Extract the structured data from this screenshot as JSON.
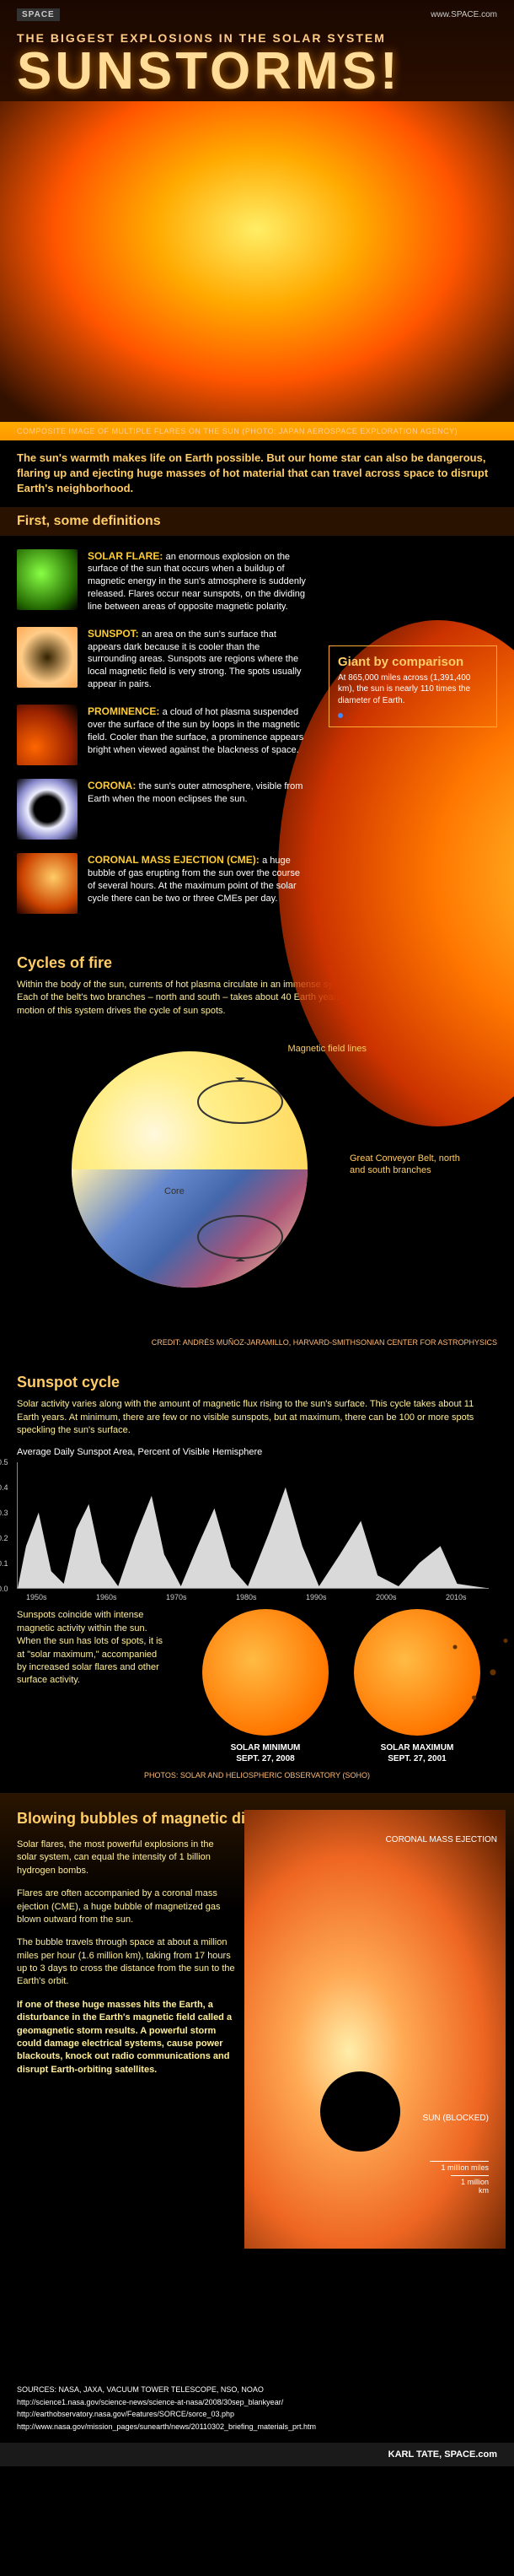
{
  "header": {
    "logo": "SPACE",
    "url": "www.SPACE.com",
    "subtitle": "THE BIGGEST EXPLOSIONS IN THE SOLAR SYSTEM",
    "title": "SUNSTORMS!"
  },
  "hero_caption": "COMPOSITE IMAGE OF MULTIPLE FLARES ON THE SUN (PHOTO: JAPAN AEROSPACE EXPLORATION AGENCY)",
  "intro": "The sun's warmth makes life on Earth possible. But our home star can also be dangerous, flaring up and ejecting huge masses of hot material that can travel across space to disrupt Earth's neighborhood.",
  "definitions": {
    "header": "First, some definitions",
    "items": [
      {
        "label": "SOLAR FLARE:",
        "text": "an enormous explosion on the surface of the sun that occurs when a buildup of magnetic energy in the sun's atmosphere is suddenly released. Flares occur near sunspots, on the dividing line between areas of opposite magnetic polarity.",
        "color": "radial-gradient(circle at 40% 40%, #88ff44, #226600 70%, #000)"
      },
      {
        "label": "SUNSPOT:",
        "text": "an area on the sun's surface that appears dark because it is cooler than the surrounding areas. Sunspots are regions where the local magnetic field is very strong. The spots usually appear in pairs.",
        "color": "radial-gradient(circle at 50% 50%, #332200, #ffcc88 60%, #ffaa55)"
      },
      {
        "label": "PROMINENCE:",
        "text": "a cloud of hot plasma suspended over the surface of the sun by loops in the magnetic field. Cooler than the surface, a prominence appears bright when viewed against the blackness of space.",
        "color": "radial-gradient(circle at 30% 70%, #ff6600, #992200 60%, #000)"
      },
      {
        "label": "CORONA:",
        "text": "the sun's outer atmosphere, visible from Earth when the moon eclipses the sun.",
        "color": "radial-gradient(circle at 50% 50%, #000 30%, #eeeeff 45%, #8888cc 70%, #000)"
      },
      {
        "label": "CORONAL MASS EJECTION (CME):",
        "text": "a huge bubble of gas erupting from the sun over the course of several hours. At the maximum point of the solar cycle there can be two or three CMEs per day.",
        "color": "radial-gradient(circle at 60% 40%, #ffcc66, #cc4400 60%, #220000)"
      }
    ]
  },
  "giant": {
    "title": "Giant by comparison",
    "text": "At 865,000 miles across (1,391,400 km), the sun is nearly 110 times the diameter of Earth.",
    "dot_label": "Earth"
  },
  "cycles": {
    "title": "Cycles of fire",
    "text": "Within the body of the sun, currents of hot plasma circulate in an immense system called the Great Conveyor Belt. Each of the belt's two branches – north and south – takes about 40 Earth years to complete a single cycle. The motion of this system drives the cycle of sun spots.",
    "labels": {
      "field": "Magnetic field lines",
      "belt": "Great Conveyor Belt, north and south branches",
      "core": "Core"
    },
    "credit": "CREDIT: ANDRÉS MUÑOZ-JARAMILLO, HARVARD-SMITHSONIAN CENTER FOR ASTROPHYSICS"
  },
  "sunspot": {
    "title": "Sunspot cycle",
    "text": "Solar activity varies along with the amount of magnetic flux rising to the sun's surface. This cycle takes about 11 Earth years. At minimum, there are few or no visible sunspots, but at maximum, there can be 100 or more spots speckling the sun's surface.",
    "chart_title": "Average Daily Sunspot Area, Percent of Visible Hemisphere",
    "y_ticks": [
      "0.5",
      "0.4",
      "0.3",
      "0.2",
      "0.1",
      "0.0"
    ],
    "x_ticks": [
      "1950s",
      "1960s",
      "1970s",
      "1980s",
      "1990s",
      "2000s",
      "2010s"
    ],
    "minmax_text": "Sunspots coincide with intense magnetic activity within the sun. When the sun has lots of spots, it is at \"solar maximum,\" accompanied by increased solar flares and other surface activity.",
    "min_label": "SOLAR MINIMUM",
    "min_date": "SEPT. 27, 2008",
    "max_label": "SOLAR MAXIMUM",
    "max_date": "SEPT. 27, 2001",
    "photo_credit": "PHOTOS: SOLAR AND HELIOSPHERIC OBSERVATORY (SOHO)"
  },
  "blowing": {
    "title": "Blowing bubbles of magnetic disturbance",
    "p1": "Solar flares, the most powerful explosions in the solar system, can equal the intensity of 1 billion hydrogen bombs.",
    "p2": "Flares are often accompanied by a coronal mass ejection (CME), a huge bubble of magnetized gas blown outward from the sun.",
    "p3": "The bubble travels through space at about a million miles per hour (1.6 million km), taking from 17 hours up to 3 days to cross the distance from the sun to the Earth's orbit.",
    "p4": "If one of these huge masses hits the Earth, a disturbance in the Earth's magnetic field called a geomagnetic storm results. A powerful storm could damage electrical systems, cause power blackouts, knock out radio communications and disrupt Earth-orbiting satellites.",
    "cme_label": "CORONAL MASS EJECTION",
    "sun_label": "SUN (BLOCKED)",
    "dist1": "1 million miles",
    "dist2": "1 million km"
  },
  "sources": {
    "line1": "SOURCES: NASA, JAXA, VACUUM TOWER TELESCOPE, NSO, NOAO",
    "links": [
      "http://science1.nasa.gov/science-news/science-at-nasa/2008/30sep_blankyear/",
      "http://earthobservatory.nasa.gov/Features/SORCE/sorce_03.php",
      "http://www.nasa.gov/mission_pages/sunearth/news/20110302_briefing_materials_prt.htm"
    ]
  },
  "footer": "KARL TATE, SPACE.com"
}
